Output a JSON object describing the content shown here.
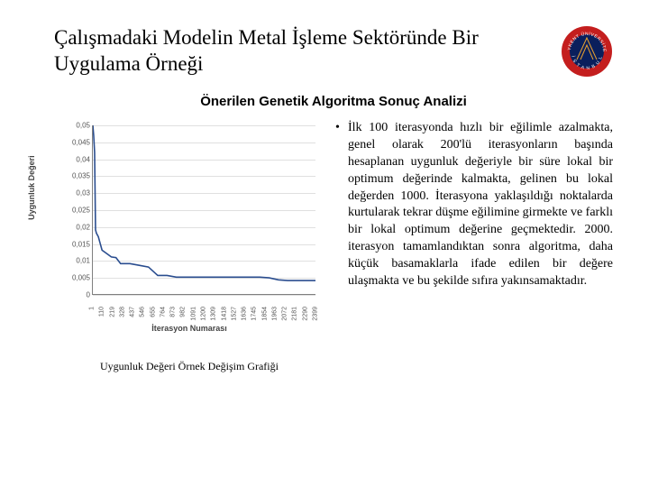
{
  "title": "Çalışmadaki Modelin Metal İşleme Sektöründe Bir Uygulama Örneği",
  "subtitle": "Önerilen Genetik Algoritma Sonuç Analizi",
  "caption": "Uygunluk Değeri Örnek Değişim Grafiği",
  "bullet": "İlk 100 iterasyonda hızlı bir eğilimle azalmakta, genel olarak 200'lü iterasyonların başında hesaplanan uygunluk değeriyle bir süre lokal bir optimum değerinde kalmakta, gelinen bu lokal değerden 1000. İterasyona yaklaşıldığı noktalarda kurtularak tekrar düşme eğilimine girmekte ve farklı bir lokal optimum değerine geçmektedir. 2000. iterasyon tamamlandıktan sonra algoritma, daha küçük basamaklarla ifade edilen bir değere ulaşmakta ve bu şekilde sıfıra yakınsamaktadır.",
  "chart": {
    "type": "line",
    "xlabel": "İterasyon Numarası",
    "ylabel": "Uygunluk Değeri",
    "ylim": [
      0,
      0.05
    ],
    "yticks": [
      0,
      0.005,
      0.01,
      0.015,
      0.02,
      0.025,
      0.03,
      0.035,
      0.04,
      0.045,
      0.05
    ],
    "xticks": [
      1,
      110,
      219,
      328,
      437,
      546,
      655,
      764,
      873,
      982,
      1091,
      1200,
      1309,
      1418,
      1527,
      1636,
      1745,
      1854,
      1963,
      2072,
      2181,
      2290,
      2399
    ],
    "xlim": [
      1,
      2399
    ],
    "line_color": "#2a4d8f",
    "line_width": 1.6,
    "grid_color": "#e0e0e0",
    "axis_color": "#808080",
    "background": "#ffffff",
    "points": [
      [
        1,
        0.05
      ],
      [
        10,
        0.047
      ],
      [
        20,
        0.042
      ],
      [
        30,
        0.019
      ],
      [
        40,
        0.018
      ],
      [
        60,
        0.017
      ],
      [
        80,
        0.015
      ],
      [
        100,
        0.013
      ],
      [
        150,
        0.012
      ],
      [
        200,
        0.011
      ],
      [
        250,
        0.0108
      ],
      [
        300,
        0.009
      ],
      [
        400,
        0.009
      ],
      [
        500,
        0.0085
      ],
      [
        600,
        0.008
      ],
      [
        700,
        0.0055
      ],
      [
        800,
        0.0055
      ],
      [
        900,
        0.005
      ],
      [
        1000,
        0.005
      ],
      [
        1100,
        0.005
      ],
      [
        1200,
        0.005
      ],
      [
        1300,
        0.005
      ],
      [
        1400,
        0.005
      ],
      [
        1500,
        0.005
      ],
      [
        1600,
        0.005
      ],
      [
        1700,
        0.005
      ],
      [
        1800,
        0.005
      ],
      [
        1900,
        0.0048
      ],
      [
        2000,
        0.0042
      ],
      [
        2100,
        0.004
      ],
      [
        2200,
        0.004
      ],
      [
        2300,
        0.004
      ],
      [
        2399,
        0.004
      ]
    ]
  },
  "logo": {
    "outer_color": "#c41e1e",
    "inner_color": "#0a1f5c",
    "text_color": "#ffffff"
  }
}
